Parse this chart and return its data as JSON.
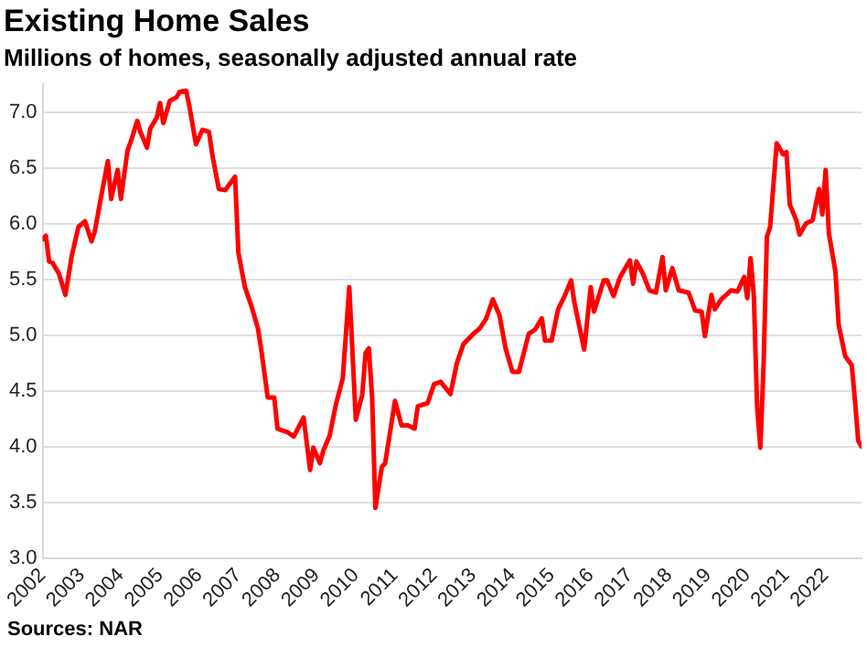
{
  "chart_data": {
    "type": "line",
    "title": "Existing Home Sales",
    "subtitle": "Millions of homes, seasonally adjusted annual rate",
    "annotations": [
      "Sources: NAR"
    ],
    "x": [
      "2002-01",
      "2002-02",
      "2002-03",
      "2002-04",
      "2002-06",
      "2002-08",
      "2002-10",
      "2002-12",
      "2003-02",
      "2003-04",
      "2003-05",
      "2003-07",
      "2003-09",
      "2003-10",
      "2003-12",
      "2004-01",
      "2004-03",
      "2004-04",
      "2004-06",
      "2004-07",
      "2004-09",
      "2004-10",
      "2004-12",
      "2005-01",
      "2005-02",
      "2005-04",
      "2005-06",
      "2005-07",
      "2005-09",
      "2005-10",
      "2005-12",
      "2006-02",
      "2006-04",
      "2006-05",
      "2006-07",
      "2006-09",
      "2006-10",
      "2006-12",
      "2007-01",
      "2007-03",
      "2007-05",
      "2007-07",
      "2007-08",
      "2007-10",
      "2007-12",
      "2008-01",
      "2008-04",
      "2008-06",
      "2008-09",
      "2008-11",
      "2008-12",
      "2009-02",
      "2009-03",
      "2009-05",
      "2009-07",
      "2009-09",
      "2009-11",
      "2010-01",
      "2010-03",
      "2010-04",
      "2010-05",
      "2010-06",
      "2010-07",
      "2010-09",
      "2010-10",
      "2011-01",
      "2011-03",
      "2011-05",
      "2011-07",
      "2011-08",
      "2011-11",
      "2012-01",
      "2012-03",
      "2012-06",
      "2012-08",
      "2012-10",
      "2013-01",
      "2013-03",
      "2013-05",
      "2013-07",
      "2013-09",
      "2013-11",
      "2014-01",
      "2014-03",
      "2014-06",
      "2014-08",
      "2014-10",
      "2014-11",
      "2015-01",
      "2015-03",
      "2015-05",
      "2015-07",
      "2015-08",
      "2015-11",
      "2016-01",
      "2016-02",
      "2016-05",
      "2016-06",
      "2016-08",
      "2016-10",
      "2017-01",
      "2017-02",
      "2017-03",
      "2017-05",
      "2017-07",
      "2017-09",
      "2017-11",
      "2017-12",
      "2018-02",
      "2018-04",
      "2018-07",
      "2018-09",
      "2018-11",
      "2018-12",
      "2019-02",
      "2019-03",
      "2019-05",
      "2019-08",
      "2019-10",
      "2019-12",
      "2020-01",
      "2020-02",
      "2020-03",
      "2020-04",
      "2020-05",
      "2020-06",
      "2020-07",
      "2020-08",
      "2020-10",
      "2020-12",
      "2021-01",
      "2021-02",
      "2021-04",
      "2021-05",
      "2021-07",
      "2021-09",
      "2021-10",
      "2021-11",
      "2021-12",
      "2022-01",
      "2022-02",
      "2022-04",
      "2022-05",
      "2022-07",
      "2022-09",
      "2022-10",
      "2022-11",
      "2022-12"
    ],
    "series": [
      {
        "color": "#ff0000",
        "values": [
          5.86,
          5.89,
          5.66,
          5.65,
          5.55,
          5.36,
          5.72,
          5.97,
          6.02,
          5.84,
          5.93,
          6.25,
          6.56,
          6.22,
          6.48,
          6.22,
          6.65,
          6.73,
          6.92,
          6.82,
          6.68,
          6.85,
          6.95,
          7.08,
          6.9,
          7.1,
          7.13,
          7.18,
          7.19,
          7.05,
          6.71,
          6.84,
          6.82,
          6.62,
          6.31,
          6.3,
          6.34,
          6.42,
          5.74,
          5.43,
          5.26,
          5.06,
          4.87,
          4.44,
          4.44,
          4.16,
          4.13,
          4.09,
          4.26,
          3.79,
          3.99,
          3.85,
          3.96,
          4.1,
          4.39,
          4.61,
          5.43,
          4.24,
          4.47,
          4.84,
          4.88,
          4.44,
          3.45,
          3.82,
          3.85,
          4.41,
          4.19,
          4.19,
          4.16,
          4.36,
          4.39,
          4.56,
          4.58,
          4.47,
          4.75,
          4.92,
          5.01,
          5.06,
          5.15,
          5.32,
          5.18,
          4.87,
          4.67,
          4.67,
          5.01,
          5.05,
          5.15,
          4.95,
          4.95,
          5.23,
          5.35,
          5.49,
          5.29,
          4.87,
          5.43,
          5.21,
          5.49,
          5.49,
          5.35,
          5.52,
          5.67,
          5.46,
          5.66,
          5.55,
          5.4,
          5.38,
          5.7,
          5.4,
          5.6,
          5.4,
          5.38,
          5.22,
          5.21,
          4.99,
          5.36,
          5.23,
          5.32,
          5.4,
          5.39,
          5.52,
          5.33,
          5.69,
          5.35,
          4.36,
          3.99,
          4.75,
          5.88,
          5.97,
          6.72,
          6.62,
          6.64,
          6.17,
          6.03,
          5.9,
          6.0,
          6.03,
          6.17,
          6.31,
          6.08,
          6.48,
          5.91,
          5.57,
          5.09,
          4.81,
          4.73,
          4.41,
          4.05,
          4.0
        ]
      }
    ],
    "xlim": [
      "2002-01",
      "2022-12"
    ],
    "xticks": [
      "2002",
      "2003",
      "2004",
      "2005",
      "2006",
      "2007",
      "2008",
      "2009",
      "2010",
      "2011",
      "2012",
      "2013",
      "2014",
      "2015",
      "2016",
      "2017",
      "2018",
      "2019",
      "2020",
      "2021",
      "2022"
    ],
    "ylim": [
      3.0,
      7.25
    ],
    "yticks": [
      {
        "value": 3,
        "label": "3.0"
      },
      {
        "value": 3.5,
        "label": "3.5"
      },
      {
        "value": 4,
        "label": "4.0"
      },
      {
        "value": 4.5,
        "label": "4.5"
      },
      {
        "value": 5,
        "label": "5.0"
      },
      {
        "value": 5.5,
        "label": "5.5"
      },
      {
        "value": 6,
        "label": "6.0"
      },
      {
        "value": 6.5,
        "label": "6.5"
      },
      {
        "value": 7,
        "label": "7.0"
      }
    ],
    "grid": "y",
    "legend": false,
    "line_style": "solid",
    "marker": "none"
  }
}
